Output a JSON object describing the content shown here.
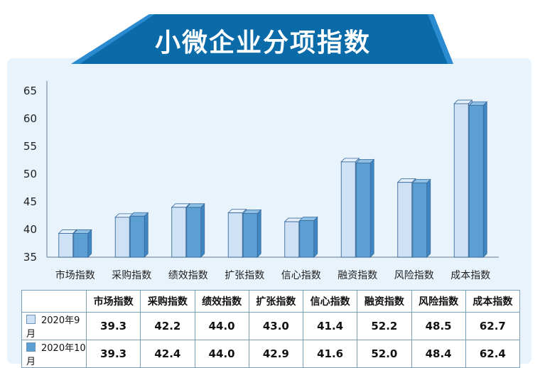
{
  "title": "小微企业分项指数",
  "colors": {
    "banner": "#0b6aa8",
    "series_sep": "#cfe1f5",
    "series_oct": "#5b9fd3",
    "bar_edge": "#3a6c9c"
  },
  "chart_data": {
    "type": "bar",
    "categories": [
      "市场指数",
      "采购指数",
      "绩效指数",
      "扩张指数",
      "信心指数",
      "融资指数",
      "风险指数",
      "成本指数"
    ],
    "series": [
      {
        "name": "2020年9月",
        "values": [
          39.3,
          42.2,
          44.0,
          43.0,
          41.4,
          52.2,
          48.5,
          62.7
        ]
      },
      {
        "name": "2020年10月",
        "values": [
          39.3,
          42.4,
          44.0,
          42.9,
          41.6,
          52.0,
          48.4,
          62.4
        ]
      }
    ],
    "y_ticks": [
      35,
      40,
      45,
      50,
      55,
      60,
      65
    ],
    "ylim": [
      35,
      65
    ],
    "grid": false,
    "legend": "table-rows"
  },
  "table": {
    "headers": [
      "市场指数",
      "采购指数",
      "绩效指数",
      "扩张指数",
      "信心指数",
      "融资指数",
      "风险指数",
      "成本指数"
    ],
    "rows": [
      {
        "label": "2020年9月",
        "cells": [
          "39.3",
          "42.2",
          "44.0",
          "43.0",
          "41.4",
          "52.2",
          "48.5",
          "62.7"
        ]
      },
      {
        "label": "2020年10月",
        "cells": [
          "39.3",
          "42.4",
          "44.0",
          "42.9",
          "41.6",
          "52.0",
          "48.4",
          "62.4"
        ]
      }
    ]
  }
}
